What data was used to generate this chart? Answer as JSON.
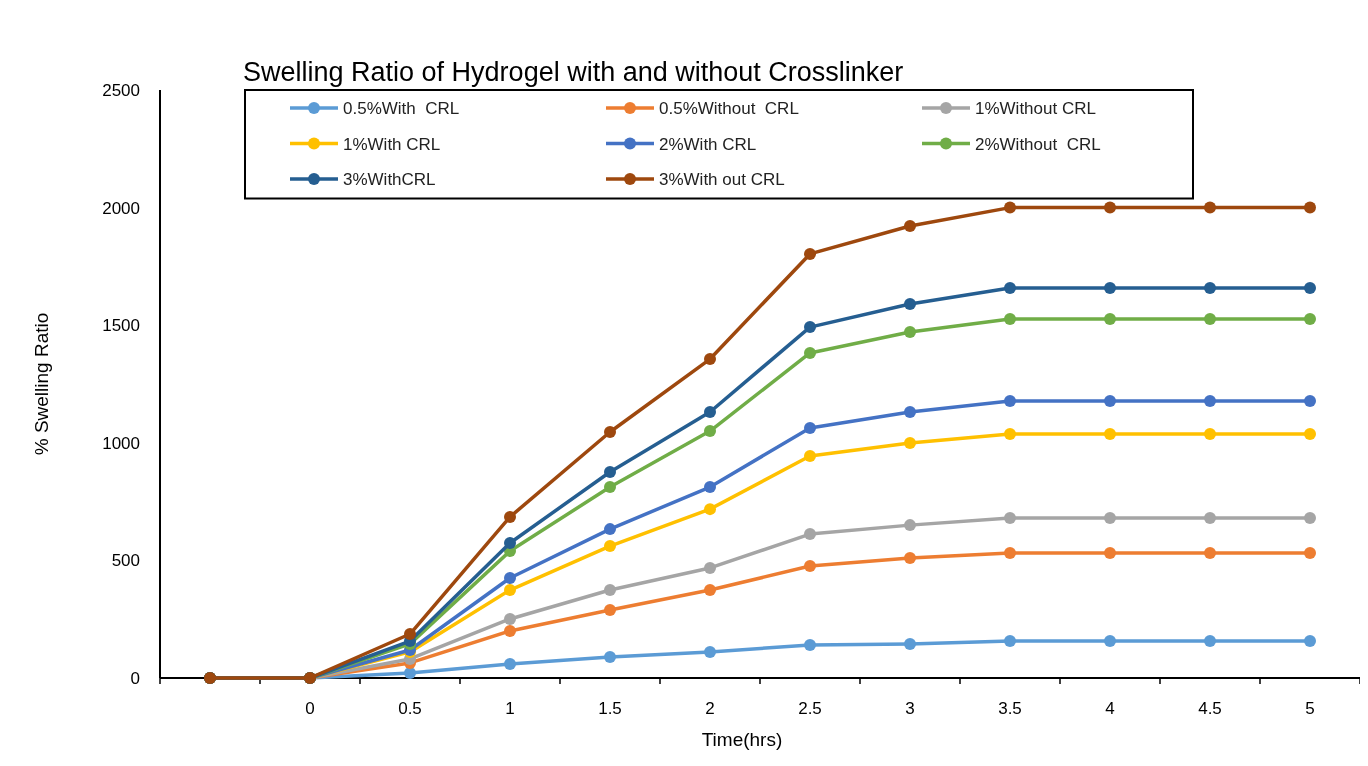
{
  "chart_data": {
    "type": "line",
    "title": "Swelling Ratio of Hydrogel with and without Crosslinker",
    "xlabel": "Time(hrs)",
    "ylabel": "% Swelling Ratio",
    "categories": [
      null,
      "0",
      "0.5",
      "1",
      "1.5",
      "2",
      "2.5",
      "3",
      "3.5",
      "4",
      "4.5",
      "5"
    ],
    "ylim": [
      0,
      2500
    ],
    "yticks": [
      0,
      500,
      1000,
      1500,
      2000,
      2500
    ],
    "grid": false,
    "legend": "top",
    "marker": "circle",
    "line_style": "solid",
    "series": [
      {
        "name": "0.5%With  CRL",
        "color": "#5b9bd5",
        "values": [
          0,
          0,
          21,
          60,
          89,
          111,
          140,
          145,
          157,
          157,
          157,
          157
        ]
      },
      {
        "name": "0.5%Without  CRL",
        "color": "#ed7d31",
        "values": [
          0,
          0,
          64,
          200,
          289,
          374,
          476,
          510,
          531,
          531,
          531,
          531
        ]
      },
      {
        "name": "1%Without CRL",
        "color": "#a5a5a5",
        "values": [
          0,
          0,
          81,
          251,
          374,
          468,
          612,
          650,
          680,
          680,
          680,
          680
        ]
      },
      {
        "name": "1%With CRL",
        "color": "#ffc000",
        "values": [
          0,
          0,
          111,
          374,
          561,
          718,
          944,
          999,
          1037,
          1037,
          1037,
          1037
        ]
      },
      {
        "name": "2%With CRL",
        "color": "#4472c4",
        "values": [
          0,
          0,
          119,
          425,
          633,
          812,
          1063,
          1131,
          1178,
          1178,
          1178,
          1178
        ]
      },
      {
        "name": "2%Without  CRL",
        "color": "#70ad47",
        "values": [
          0,
          0,
          145,
          540,
          812,
          1050,
          1382,
          1471,
          1526,
          1526,
          1526,
          1526
        ]
      },
      {
        "name": "3%WithCRL",
        "color": "#255e91",
        "values": [
          0,
          0,
          157,
          574,
          876,
          1131,
          1492,
          1590,
          1658,
          1658,
          1658,
          1658
        ]
      },
      {
        "name": "3%With out CRL",
        "color": "#9e480e",
        "values": [
          0,
          0,
          187,
          685,
          1046,
          1356,
          1803,
          1922,
          2000,
          2000,
          2000,
          2000
        ]
      }
    ]
  }
}
